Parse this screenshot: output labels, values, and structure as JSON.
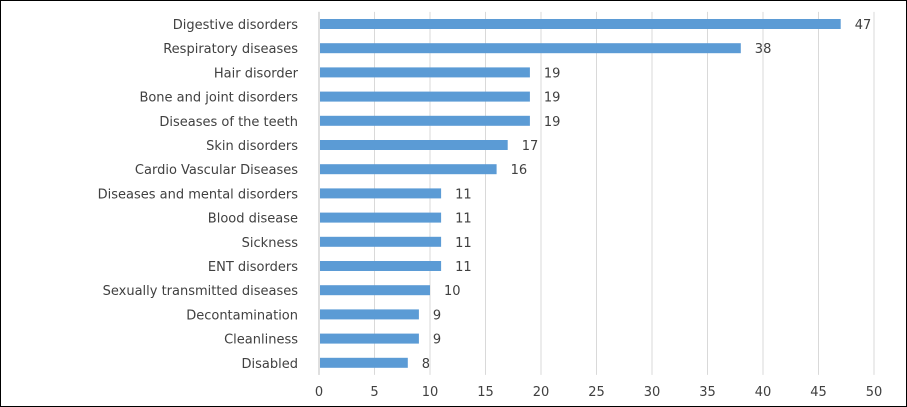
{
  "chart_data": {
    "type": "bar",
    "orientation": "horizontal",
    "categories": [
      "Digestive disorders",
      "Respiratory diseases",
      "Hair disorder",
      "Bone and joint disorders",
      "Diseases of the teeth",
      "Skin disorders",
      "Cardio Vascular Diseases",
      "Diseases and mental disorders",
      "Blood disease",
      "Sickness",
      "ENT disorders",
      "Sexually transmitted diseases",
      "Decontamination",
      "Cleanliness",
      "Disabled"
    ],
    "values": [
      47,
      38,
      19,
      19,
      19,
      17,
      16,
      11,
      11,
      11,
      11,
      10,
      9,
      9,
      8
    ],
    "xlim": [
      0,
      50
    ],
    "xticks": [
      0,
      5,
      10,
      15,
      20,
      25,
      30,
      35,
      40,
      45,
      50
    ],
    "grid": "vertical",
    "data_labels": true,
    "bar_color": "#5b9bd5",
    "grid_color": "#d9d9d9",
    "axis_color": "#bfbfbf",
    "title": "",
    "xlabel": "",
    "ylabel": ""
  }
}
